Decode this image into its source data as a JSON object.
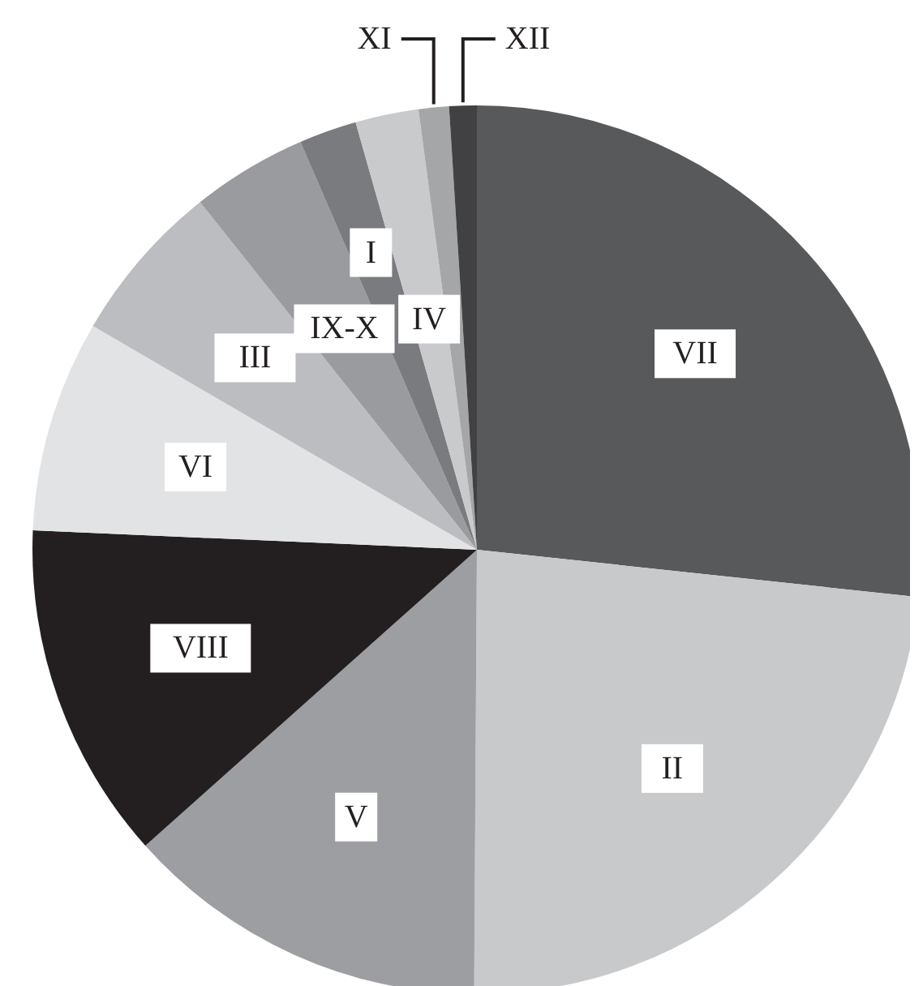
{
  "chart_data": {
    "type": "pie",
    "categories": [
      "VII",
      "II",
      "V",
      "VIII",
      "VI",
      "III",
      "IX-X",
      "I",
      "IV",
      "XI",
      "XII"
    ],
    "values": [
      26.7,
      23.4,
      13.3,
      12.3,
      7.7,
      5.9,
      4.2,
      2.1,
      2.3,
      1.1,
      1.0
    ],
    "colors": [
      "#58595b",
      "#c8c9cb",
      "#9d9ea1",
      "#231f20",
      "#e2e3e4",
      "#bcbdc0",
      "#9a9b9e",
      "#7a7b7e",
      "#c9cacc",
      "#a5a6a8",
      "#414042"
    ],
    "legend": false
  }
}
